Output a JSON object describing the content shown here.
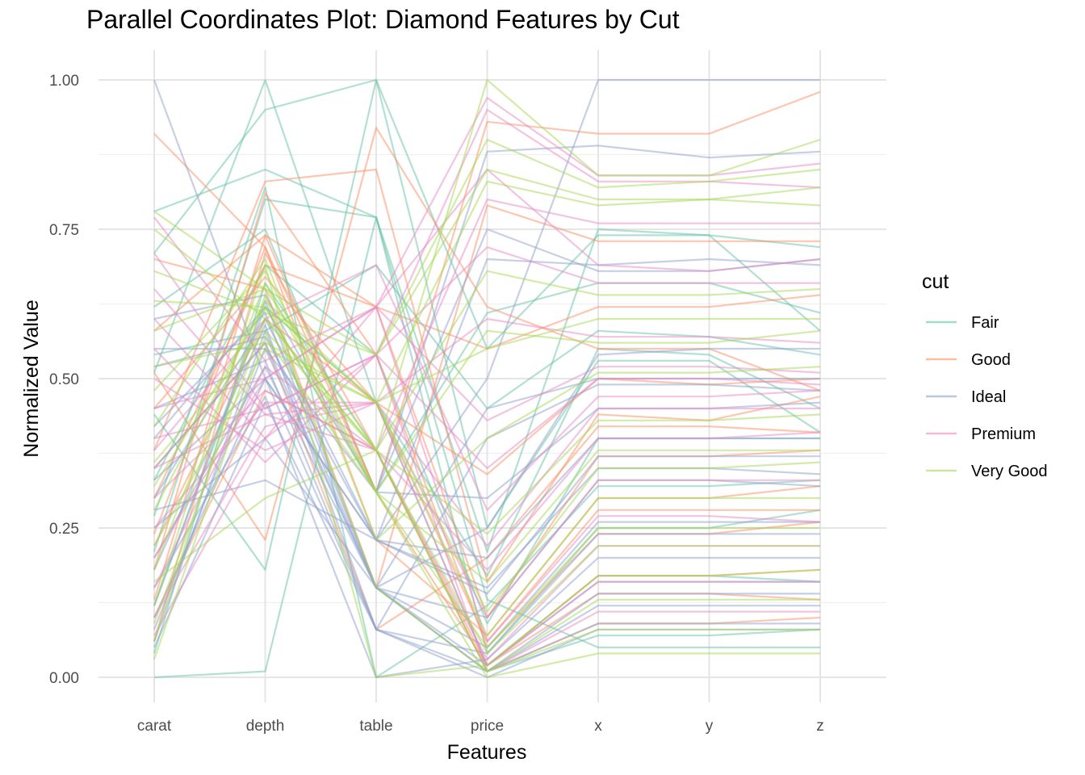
{
  "chart_data": {
    "type": "line",
    "title": "Parallel Coordinates Plot: Diamond Features by Cut",
    "xlabel": "Features",
    "ylabel": "Normalized Value",
    "categories": [
      "carat",
      "depth",
      "table",
      "price",
      "x",
      "y",
      "z"
    ],
    "ylim": [
      0,
      1
    ],
    "yticks": [
      0,
      0.25,
      0.5,
      0.75,
      1
    ],
    "ytick_labels": [
      "0.00",
      "0.25",
      "0.50",
      "0.75",
      "1.00"
    ],
    "grid": true,
    "legend": {
      "title": "cut",
      "placement": "right"
    },
    "line_opacity": 0.5,
    "series": [
      {
        "name": "Fair",
        "color": "#66C2A5",
        "lines": [
          [
            0.71,
            0.95,
            1.0,
            0.55,
            0.74,
            0.74,
            0.72
          ],
          [
            0.78,
            0.85,
            0.77,
            0.21,
            0.75,
            0.74,
            0.58
          ],
          [
            0.0,
            0.01,
            0.77,
            0.13,
            0.05,
            0.05,
            0.05
          ],
          [
            0.51,
            1.0,
            0.46,
            0.17,
            0.55,
            0.54,
            0.45
          ],
          [
            0.21,
            0.8,
            0.77,
            0.04,
            0.25,
            0.25,
            0.28
          ],
          [
            0.44,
            0.18,
            1.0,
            0.25,
            0.53,
            0.53,
            0.41
          ],
          [
            0.12,
            0.62,
            0.46,
            0.02,
            0.17,
            0.17,
            0.16
          ],
          [
            0.62,
            0.75,
            0.31,
            0.61,
            0.66,
            0.66,
            0.61
          ],
          [
            0.33,
            0.69,
            0.54,
            0.09,
            0.4,
            0.4,
            0.4
          ],
          [
            0.27,
            0.82,
            0.0,
            0.12,
            0.32,
            0.32,
            0.33
          ],
          [
            0.04,
            0.66,
            0.38,
            0.01,
            0.07,
            0.07,
            0.08
          ],
          [
            0.54,
            0.58,
            0.69,
            0.45,
            0.58,
            0.57,
            0.54
          ]
        ]
      },
      {
        "name": "Good",
        "color": "#FC8D62",
        "lines": [
          [
            0.91,
            0.72,
            0.31,
            0.93,
            0.91,
            0.91,
            0.98
          ],
          [
            0.51,
            0.23,
            0.92,
            0.62,
            0.55,
            0.55,
            0.48
          ],
          [
            0.38,
            0.83,
            0.85,
            0.16,
            0.44,
            0.43,
            0.47
          ],
          [
            0.3,
            0.69,
            0.62,
            0.1,
            0.37,
            0.37,
            0.38
          ],
          [
            0.13,
            0.74,
            0.31,
            0.02,
            0.17,
            0.17,
            0.18
          ],
          [
            0.06,
            0.71,
            0.38,
            0.01,
            0.09,
            0.09,
            0.1
          ],
          [
            0.24,
            0.72,
            0.23,
            0.07,
            0.3,
            0.3,
            0.32
          ],
          [
            0.45,
            0.67,
            0.46,
            0.34,
            0.5,
            0.49,
            0.5
          ],
          [
            0.18,
            0.81,
            0.54,
            0.05,
            0.24,
            0.24,
            0.26
          ],
          [
            0.7,
            0.65,
            0.15,
            0.79,
            0.73,
            0.73,
            0.73
          ],
          [
            0.35,
            0.56,
            0.08,
            0.2,
            0.42,
            0.42,
            0.41
          ],
          [
            0.1,
            0.48,
            0.38,
            0.02,
            0.14,
            0.14,
            0.13
          ],
          [
            0.58,
            0.74,
            0.62,
            0.55,
            0.62,
            0.62,
            0.64
          ],
          [
            0.22,
            0.6,
            0.46,
            0.06,
            0.28,
            0.28,
            0.28
          ]
        ]
      },
      {
        "name": "Ideal",
        "color": "#8DA0CB",
        "lines": [
          [
            1.0,
            0.5,
            0.23,
            0.5,
            1.0,
            1.0,
            1.0
          ],
          [
            0.55,
            0.55,
            0.31,
            0.88,
            0.89,
            0.87,
            0.88
          ],
          [
            0.35,
            0.56,
            0.15,
            0.25,
            0.54,
            0.55,
            0.55
          ],
          [
            0.2,
            0.52,
            0.15,
            0.05,
            0.26,
            0.26,
            0.26
          ],
          [
            0.1,
            0.5,
            0.08,
            0.01,
            0.14,
            0.14,
            0.14
          ],
          [
            0.06,
            0.58,
            0.15,
            0.01,
            0.09,
            0.09,
            0.09
          ],
          [
            0.3,
            0.6,
            0.23,
            0.14,
            0.37,
            0.37,
            0.37
          ],
          [
            0.45,
            0.53,
            0.08,
            0.4,
            0.49,
            0.49,
            0.48
          ],
          [
            0.15,
            0.47,
            0.0,
            0.03,
            0.2,
            0.2,
            0.2
          ],
          [
            0.4,
            0.62,
            0.31,
            0.3,
            0.45,
            0.45,
            0.46
          ],
          [
            0.25,
            0.4,
            0.15,
            0.1,
            0.33,
            0.33,
            0.32
          ],
          [
            0.52,
            0.57,
            0.23,
            0.7,
            0.69,
            0.7,
            0.69
          ],
          [
            0.08,
            0.55,
            0.15,
            0.01,
            0.12,
            0.12,
            0.12
          ],
          [
            0.33,
            0.5,
            0.23,
            0.2,
            0.4,
            0.4,
            0.4
          ],
          [
            0.6,
            0.64,
            0.31,
            0.75,
            0.68,
            0.68,
            0.7
          ],
          [
            0.18,
            0.59,
            0.08,
            0.04,
            0.24,
            0.24,
            0.24
          ],
          [
            0.05,
            0.46,
            0.08,
            0.0,
            0.08,
            0.08,
            0.08
          ],
          [
            0.42,
            0.61,
            0.15,
            0.45,
            0.5,
            0.5,
            0.5
          ],
          [
            0.28,
            0.33,
            0.23,
            0.15,
            0.35,
            0.35,
            0.34
          ],
          [
            0.12,
            0.63,
            0.15,
            0.02,
            0.16,
            0.16,
            0.16
          ]
        ]
      },
      {
        "name": "Premium",
        "color": "#E78AC3",
        "lines": [
          [
            0.77,
            0.53,
            0.62,
            0.97,
            0.84,
            0.84,
            0.86
          ],
          [
            0.71,
            0.45,
            0.54,
            0.95,
            0.83,
            0.83,
            0.82
          ],
          [
            0.6,
            0.4,
            0.62,
            0.85,
            0.69,
            0.68,
            0.7
          ],
          [
            0.5,
            0.38,
            0.46,
            0.6,
            0.57,
            0.57,
            0.56
          ],
          [
            0.4,
            0.45,
            0.54,
            0.35,
            0.5,
            0.5,
            0.49
          ],
          [
            0.3,
            0.48,
            0.38,
            0.18,
            0.4,
            0.4,
            0.41
          ],
          [
            0.2,
            0.5,
            0.62,
            0.06,
            0.27,
            0.27,
            0.26
          ],
          [
            0.1,
            0.42,
            0.46,
            0.02,
            0.16,
            0.16,
            0.16
          ],
          [
            0.35,
            0.44,
            0.46,
            0.22,
            0.45,
            0.45,
            0.45
          ],
          [
            0.55,
            0.36,
            0.54,
            0.72,
            0.66,
            0.66,
            0.66
          ],
          [
            0.15,
            0.52,
            0.38,
            0.03,
            0.22,
            0.22,
            0.22
          ],
          [
            0.45,
            0.5,
            0.62,
            0.43,
            0.52,
            0.52,
            0.51
          ],
          [
            0.07,
            0.4,
            0.54,
            0.01,
            0.11,
            0.11,
            0.11
          ],
          [
            0.25,
            0.46,
            0.46,
            0.1,
            0.33,
            0.33,
            0.33
          ],
          [
            0.65,
            0.44,
            0.38,
            0.8,
            0.76,
            0.76,
            0.76
          ],
          [
            0.38,
            0.6,
            0.69,
            0.28,
            0.47,
            0.47,
            0.48
          ]
        ]
      },
      {
        "name": "Very Good",
        "color": "#A6D854",
        "lines": [
          [
            0.75,
            0.6,
            0.38,
            1.0,
            0.84,
            0.84,
            0.9
          ],
          [
            0.78,
            0.65,
            0.54,
            0.9,
            0.82,
            0.83,
            0.85
          ],
          [
            0.63,
            0.62,
            0.46,
            0.83,
            0.79,
            0.8,
            0.79
          ],
          [
            0.48,
            0.68,
            0.31,
            0.58,
            0.56,
            0.56,
            0.58
          ],
          [
            0.36,
            0.58,
            0.38,
            0.24,
            0.43,
            0.43,
            0.44
          ],
          [
            0.28,
            0.63,
            0.46,
            0.11,
            0.35,
            0.35,
            0.36
          ],
          [
            0.18,
            0.66,
            0.31,
            0.05,
            0.25,
            0.25,
            0.25
          ],
          [
            0.09,
            0.6,
            0.38,
            0.01,
            0.13,
            0.13,
            0.13
          ],
          [
            0.03,
            0.57,
            0.31,
            0.0,
            0.04,
            0.04,
            0.04
          ],
          [
            0.42,
            0.7,
            0.23,
            0.4,
            0.51,
            0.51,
            0.52
          ],
          [
            0.22,
            0.55,
            0.46,
            0.07,
            0.3,
            0.3,
            0.3
          ],
          [
            0.58,
            0.65,
            0.38,
            0.68,
            0.64,
            0.64,
            0.65
          ],
          [
            0.12,
            0.69,
            0.0,
            0.02,
            0.17,
            0.17,
            0.18
          ],
          [
            0.32,
            0.62,
            0.31,
            0.16,
            0.38,
            0.38,
            0.38
          ],
          [
            0.52,
            0.56,
            0.46,
            0.55,
            0.6,
            0.6,
            0.6
          ],
          [
            0.06,
            0.64,
            0.15,
            0.01,
            0.08,
            0.08,
            0.08
          ],
          [
            0.68,
            0.61,
            0.54,
            0.85,
            0.8,
            0.8,
            0.82
          ],
          [
            0.16,
            0.3,
            0.38,
            0.04,
            0.22,
            0.22,
            0.22
          ]
        ]
      }
    ]
  }
}
